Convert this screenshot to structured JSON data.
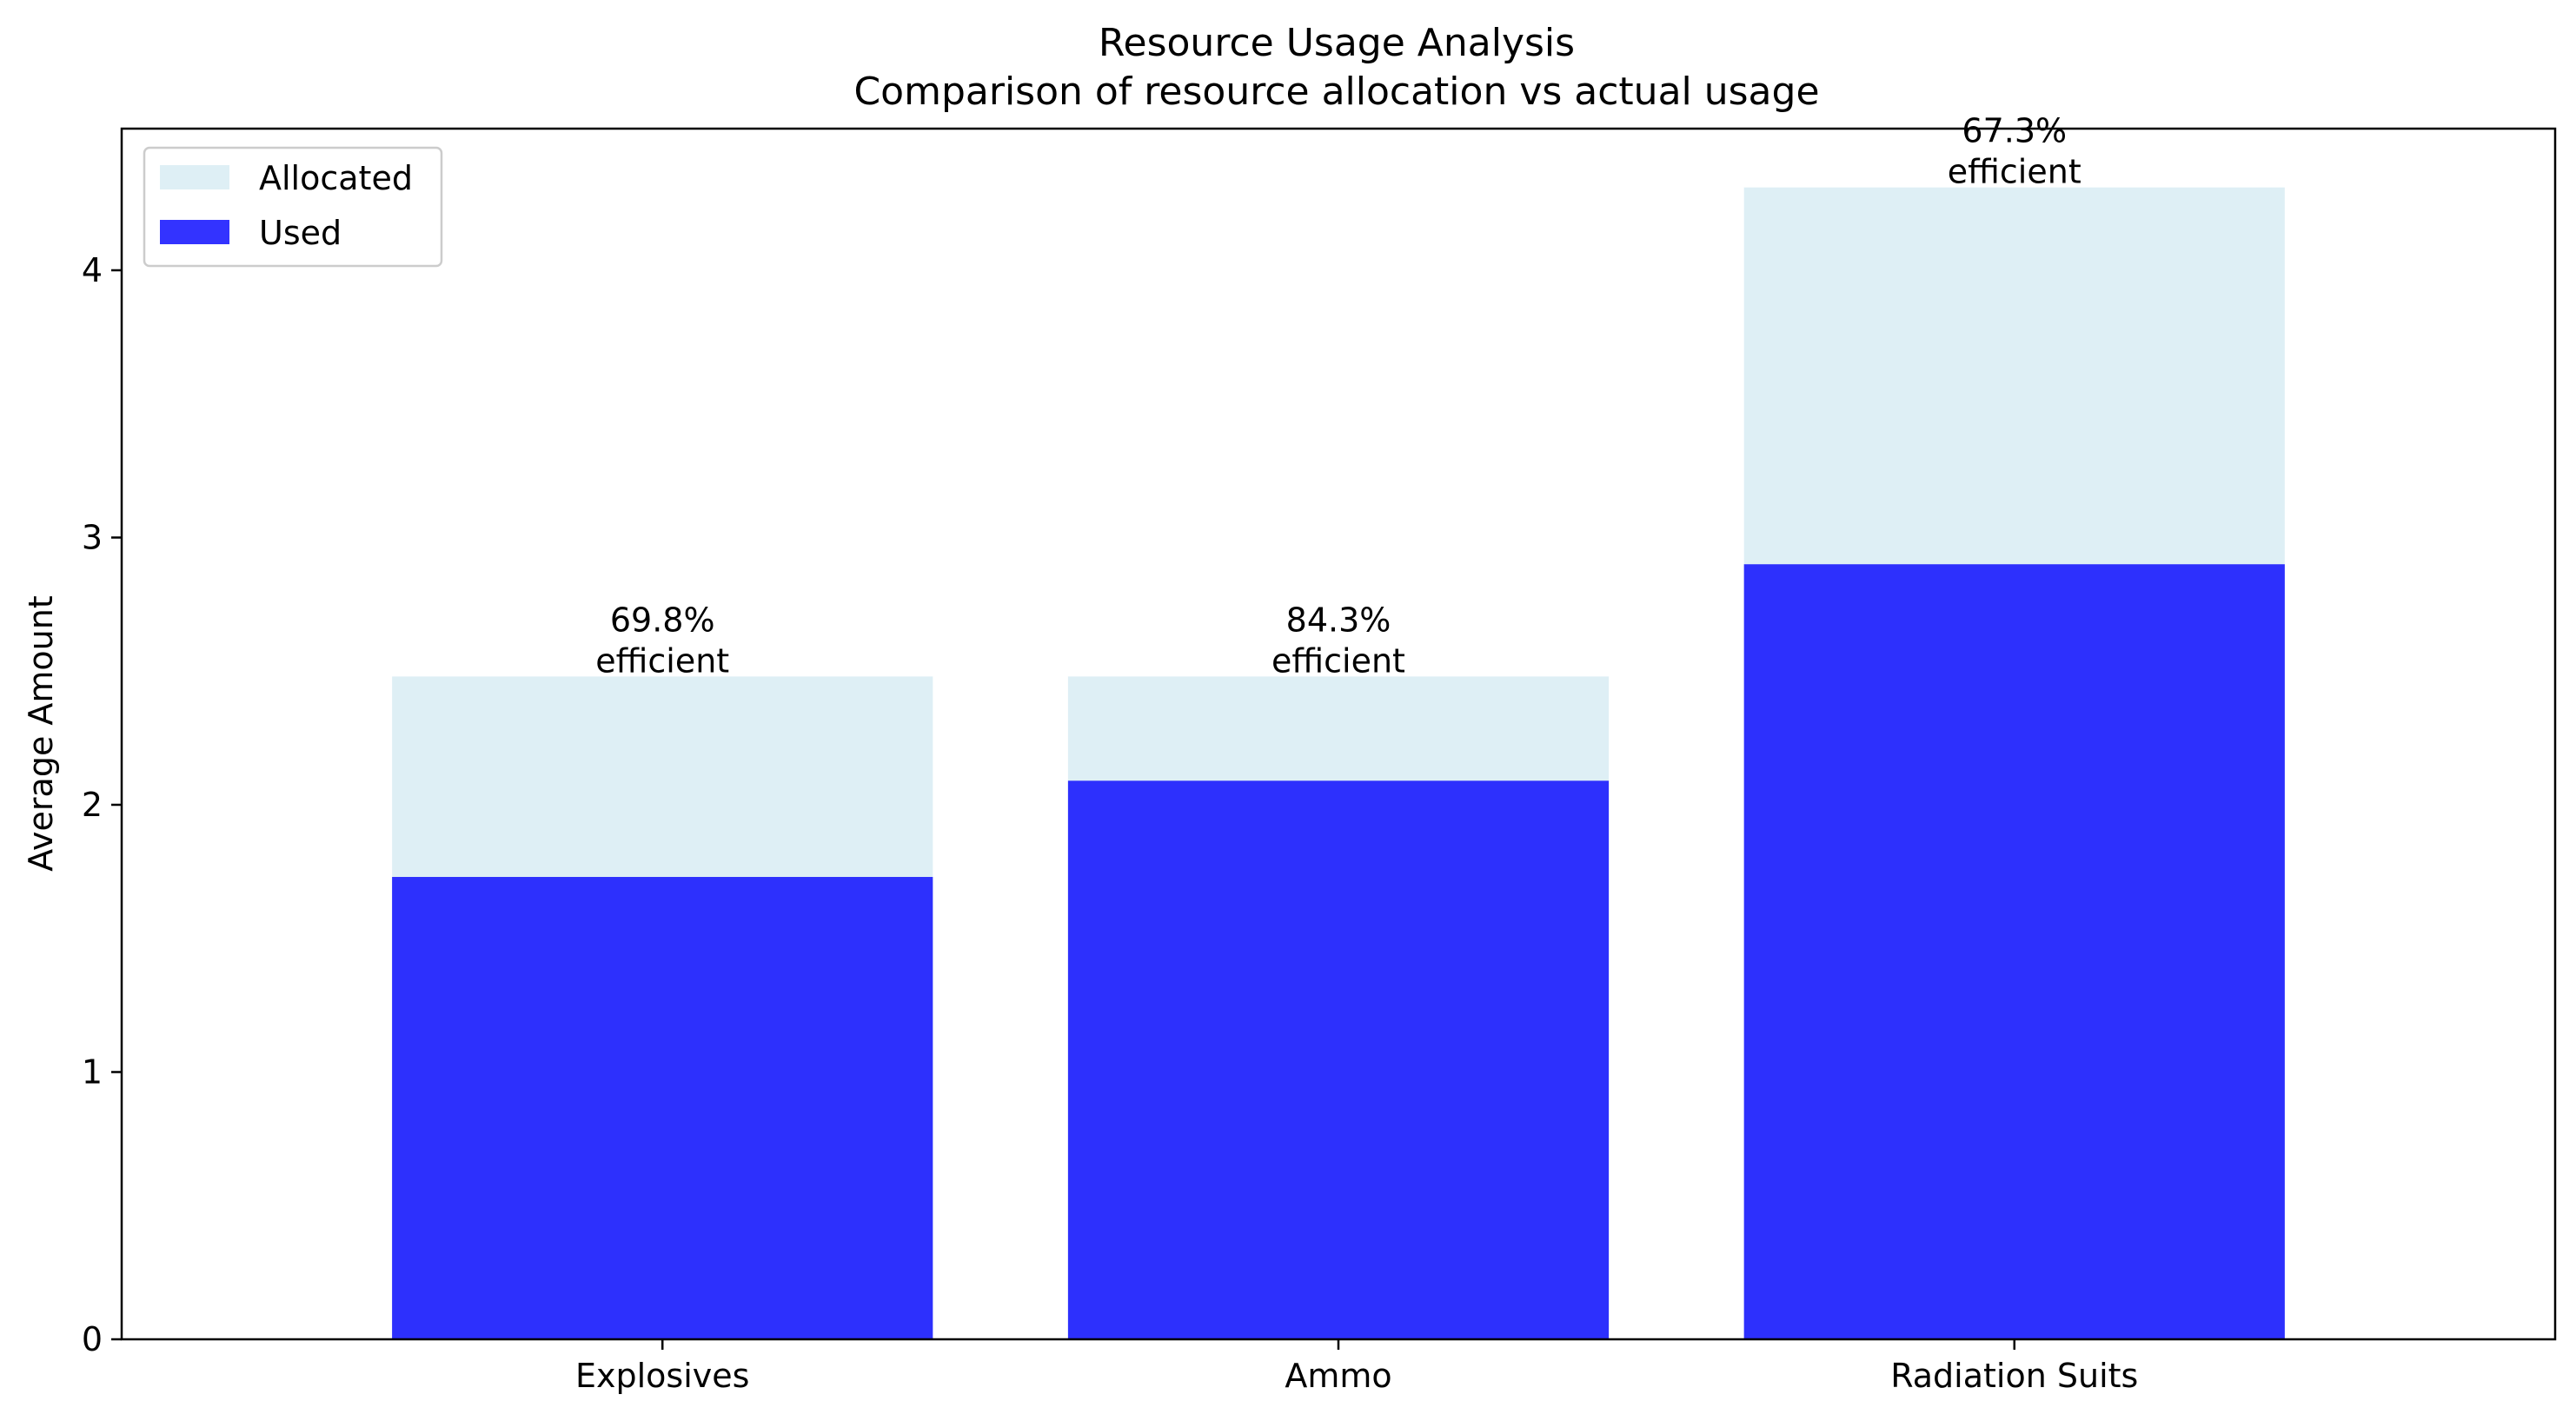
{
  "chart_data": {
    "type": "bar",
    "title": "Resource Usage Analysis",
    "subtitle": "Comparison of resource allocation vs actual usage",
    "xlabel": "",
    "ylabel": "Average Amount",
    "categories": [
      "Explosives",
      "Ammo",
      "Radiation Suits"
    ],
    "series": [
      {
        "name": "Allocated",
        "values": [
          2.48,
          2.48,
          4.31
        ],
        "color": "#add8e6"
      },
      {
        "name": "Used",
        "values": [
          1.73,
          2.09,
          2.9
        ],
        "color": "#0000ff"
      }
    ],
    "bar_labels": [
      {
        "line1": "69.8%",
        "line2": "efficient"
      },
      {
        "line1": "84.3%",
        "line2": "efficient"
      },
      {
        "line1": "67.3%",
        "line2": "efficient"
      }
    ],
    "ylim": [
      0,
      4.53
    ],
    "yticks": [
      0,
      1,
      2,
      3,
      4
    ],
    "grid": false,
    "legend_position": "top-left"
  }
}
